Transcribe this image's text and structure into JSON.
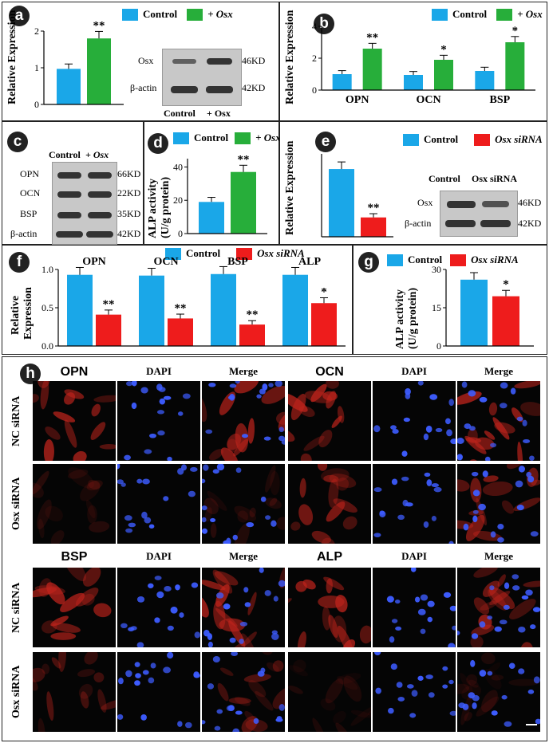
{
  "colors": {
    "control": "#1aa7e8",
    "osx": "#27ae3a",
    "sirna": "#ee1c1c"
  },
  "panels": {
    "a": {
      "label": "a",
      "legend": [
        "Control",
        "+ Osx"
      ],
      "ylabel": "Relative Expression",
      "blot": {
        "rows": [
          "Osx",
          "β-actin"
        ],
        "sizes": [
          "46KD",
          "42KD"
        ],
        "lanes": [
          "Control",
          "+ Osx"
        ]
      }
    },
    "b": {
      "label": "b",
      "legend": [
        "Control",
        "+ Osx"
      ],
      "ylabel": "Relative Expression"
    },
    "c": {
      "label": "c",
      "lanes": [
        "Control",
        "+ Osx"
      ],
      "rows": [
        "OPN",
        "OCN",
        "BSP",
        "β-actin"
      ],
      "sizes": [
        "66KD",
        "22KD",
        "35KD",
        "42KD"
      ]
    },
    "d": {
      "label": "d",
      "legend": [
        "Control",
        "+ Osx"
      ],
      "ylabel1": "ALP activity",
      "ylabel2": "(U/g protein)"
    },
    "e": {
      "label": "e",
      "legend": [
        "Control",
        "Osx siRNA"
      ],
      "ylabel": "Relative Expression",
      "blot": {
        "lanes": [
          "Control",
          "Osx siRNA"
        ],
        "rows": [
          "Osx",
          "β-actin"
        ],
        "sizes": [
          "46KD",
          "42KD"
        ]
      }
    },
    "f": {
      "label": "f",
      "legend": [
        "Control",
        "Osx siRNA"
      ],
      "ylabel1": "Relative",
      "ylabel2": "Expression"
    },
    "g": {
      "label": "g",
      "legend": [
        "Control",
        "Osx siRNA"
      ],
      "ylabel1": "ALP activity",
      "ylabel2": "(U/g protein)"
    },
    "h": {
      "label": "h",
      "top_titles": [
        "OPN",
        "DAPI",
        "Merge",
        "OCN",
        "DAPI",
        "Merge"
      ],
      "bottom_titles": [
        "BSP",
        "DAPI",
        "Merge",
        "ALP",
        "DAPI",
        "Merge"
      ],
      "row_labels": [
        "NC siRNA",
        "Osx siRNA",
        "NC siRNA",
        "Osx siRNA"
      ]
    }
  },
  "chart_data": [
    {
      "panel": "a",
      "type": "bar",
      "categories": [
        ""
      ],
      "series": [
        {
          "name": "Control",
          "values": [
            0.97
          ]
        },
        {
          "name": "+ Osx",
          "values": [
            1.8
          ]
        }
      ],
      "significance": [
        "",
        "**"
      ],
      "ylim": [
        0,
        2
      ],
      "yticks": [
        "0",
        "1",
        "2"
      ],
      "ylabel": "Relative Expression"
    },
    {
      "panel": "b",
      "type": "bar",
      "categories": [
        "OPN",
        "OCN",
        "BSP"
      ],
      "series": [
        {
          "name": "Control",
          "values": [
            1.0,
            0.95,
            1.2
          ]
        },
        {
          "name": "+ Osx",
          "values": [
            2.6,
            1.9,
            3.0
          ]
        }
      ],
      "significance": [
        "**",
        "*",
        "*"
      ],
      "ylim": [
        0,
        4
      ],
      "yticks": [
        "0",
        "2",
        "4"
      ],
      "ylabel": "Relative Expression"
    },
    {
      "panel": "d",
      "type": "bar",
      "categories": [
        ""
      ],
      "series": [
        {
          "name": "Control",
          "values": [
            19
          ]
        },
        {
          "name": "+ Osx",
          "values": [
            37
          ]
        }
      ],
      "significance": [
        "",
        "**"
      ],
      "ylim": [
        0,
        45
      ],
      "yticks": [
        "0",
        "20",
        "40"
      ],
      "ylabel": "ALP activity (U/g protein)"
    },
    {
      "panel": "e",
      "type": "bar",
      "categories": [
        ""
      ],
      "series": [
        {
          "name": "Control",
          "values": [
            0.98
          ]
        },
        {
          "name": "Osx siRNA",
          "values": [
            0.28
          ]
        }
      ],
      "significance": [
        "",
        "**"
      ],
      "ylim": [
        0,
        1.2
      ],
      "ylabel": "Relative Expression"
    },
    {
      "panel": "f",
      "type": "bar",
      "categories": [
        "OPN",
        "OCN",
        "BSP",
        "ALP"
      ],
      "series": [
        {
          "name": "Control",
          "values": [
            0.93,
            0.92,
            0.94,
            0.93
          ]
        },
        {
          "name": "Osx siRNA",
          "values": [
            0.41,
            0.36,
            0.28,
            0.56
          ]
        }
      ],
      "significance": [
        "**",
        "**",
        "**",
        "*"
      ],
      "ylim": [
        0,
        1.0
      ],
      "yticks": [
        "0.0",
        "0.5",
        "1.0"
      ],
      "ylabel": "Relative Expression"
    },
    {
      "panel": "g",
      "type": "bar",
      "categories": [
        ""
      ],
      "series": [
        {
          "name": "Control",
          "values": [
            26
          ]
        },
        {
          "name": "Osx siRNA",
          "values": [
            19.5
          ]
        }
      ],
      "significance": [
        "",
        "*"
      ],
      "ylim": [
        0,
        30
      ],
      "yticks": [
        "0",
        "15",
        "30"
      ],
      "ylabel": "ALP activity (U/g protein)"
    }
  ]
}
